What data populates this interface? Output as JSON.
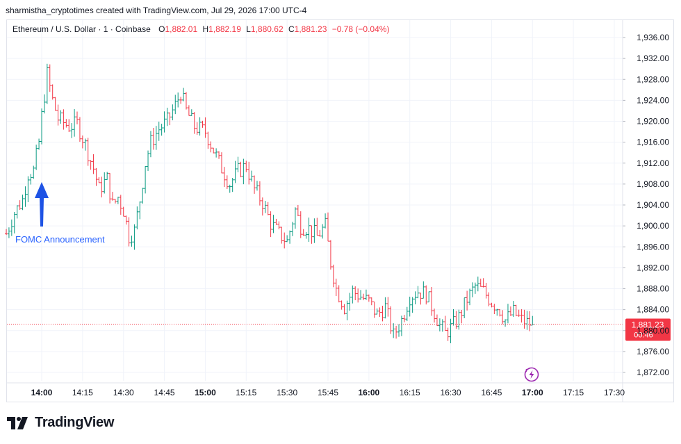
{
  "header": {
    "attribution": "sharmistha_cryptotimes created with TradingView.com, Jul 29, 2026 17:00 UTC-4"
  },
  "legend": {
    "symbol": "Ethereum / U.S. Dollar · 1 · Coinbase",
    "o_label": "O",
    "o_value": "1,882.01",
    "h_label": "H",
    "h_value": "1,882.19",
    "l_label": "L",
    "l_value": "1,880.62",
    "c_label": "C",
    "c_value": "1,881.23",
    "change": "−0.78 (−0.04%)"
  },
  "price_tag": {
    "price": "1,881.23",
    "countdown": "00:46"
  },
  "annotation": {
    "text": "FOMC Announcement"
  },
  "footer": {
    "brand": "TradingView"
  },
  "colors": {
    "up": "#089981",
    "down": "#f23645",
    "annotation": "#2962ff",
    "arrow": "#1e53e5",
    "grid": "#f0f3fa",
    "text": "#131722",
    "muted": "#787b86",
    "bolt": "#9c27b0"
  },
  "chart_data": {
    "type": "ohlc",
    "title": "Ethereum / U.S. Dollar · 1 · Coinbase",
    "xlabel": "",
    "ylabel": "",
    "ylim": [
      1870,
      1938
    ],
    "y_ticks": [
      1872,
      1876,
      1880,
      1884,
      1888,
      1892,
      1896,
      1900,
      1904,
      1908,
      1912,
      1916,
      1920,
      1924,
      1928,
      1932,
      1936
    ],
    "y_tick_labels": [
      "1,872.00",
      "1,876.00",
      "1,880.00",
      "1,884.00",
      "1,888.00",
      "1,892.00",
      "1,896.00",
      "1,900.00",
      "1,904.00",
      "1,908.00",
      "1,912.00",
      "1,916.00",
      "1,920.00",
      "1,924.00",
      "1,928.00",
      "1,932.00",
      "1,936.00"
    ],
    "x_tick_labels": [
      "14:00",
      "14:15",
      "14:30",
      "14:45",
      "15:00",
      "15:15",
      "15:30",
      "15:45",
      "16:00",
      "16:15",
      "16:30",
      "16:45",
      "17:00",
      "17:15",
      "17:30"
    ],
    "x_tick_bold": [
      true,
      false,
      false,
      false,
      true,
      false,
      false,
      false,
      true,
      false,
      false,
      false,
      true,
      false,
      false
    ],
    "last_price": 1881.23,
    "annotation_time": "14:00",
    "close_path": [
      [
        "13:47",
        1898.5
      ],
      [
        "13:50",
        1902.5
      ],
      [
        "13:53",
        1905.0
      ],
      [
        "13:55",
        1910.0
      ],
      [
        "13:57",
        1910.5
      ],
      [
        "13:59",
        1916.0
      ],
      [
        "14:00",
        1921.0
      ],
      [
        "14:02",
        1929.0
      ],
      [
        "14:04",
        1924.0
      ],
      [
        "14:06",
        1920.5
      ],
      [
        "14:10",
        1919.0
      ],
      [
        "14:13",
        1919.5
      ],
      [
        "14:16",
        1915.5
      ],
      [
        "14:19",
        1911.0
      ],
      [
        "14:21",
        1907.0
      ],
      [
        "14:24",
        1909.0
      ],
      [
        "14:26",
        1904.0
      ],
      [
        "14:28",
        1905.5
      ],
      [
        "14:30",
        1903.0
      ],
      [
        "14:32",
        1898.0
      ],
      [
        "14:34",
        1899.0
      ],
      [
        "14:36",
        1905.0
      ],
      [
        "14:38",
        1912.0
      ],
      [
        "14:40",
        1916.0
      ],
      [
        "14:43",
        1918.5
      ],
      [
        "14:46",
        1920.0
      ],
      [
        "14:49",
        1923.0
      ],
      [
        "14:51",
        1925.5
      ],
      [
        "14:53",
        1922.0
      ],
      [
        "14:56",
        1919.0
      ],
      [
        "15:00",
        1918.0
      ],
      [
        "15:03",
        1914.5
      ],
      [
        "15:06",
        1911.0
      ],
      [
        "15:09",
        1908.0
      ],
      [
        "15:12",
        1910.5
      ],
      [
        "15:15",
        1911.5
      ],
      [
        "15:18",
        1907.0
      ],
      [
        "15:21",
        1904.5
      ],
      [
        "15:24",
        1900.5
      ],
      [
        "15:27",
        1898.5
      ],
      [
        "15:30",
        1897.0
      ],
      [
        "15:33",
        1903.0
      ],
      [
        "15:35",
        1900.0
      ],
      [
        "15:38",
        1899.5
      ],
      [
        "15:41",
        1898.0
      ],
      [
        "15:44",
        1900.0
      ],
      [
        "15:46",
        1893.0
      ],
      [
        "15:48",
        1888.0
      ],
      [
        "15:51",
        1884.5
      ],
      [
        "15:54",
        1887.5
      ],
      [
        "15:57",
        1886.5
      ],
      [
        "16:00",
        1885.5
      ],
      [
        "16:03",
        1883.0
      ],
      [
        "16:06",
        1884.5
      ],
      [
        "16:09",
        1879.0
      ],
      [
        "16:12",
        1882.0
      ],
      [
        "16:15",
        1886.5
      ],
      [
        "16:18",
        1887.5
      ],
      [
        "16:21",
        1887.0
      ],
      [
        "16:24",
        1883.5
      ],
      [
        "16:26",
        1881.0
      ],
      [
        "16:28",
        1879.5
      ],
      [
        "16:30",
        1880.5
      ],
      [
        "16:33",
        1882.5
      ],
      [
        "16:36",
        1886.0
      ],
      [
        "16:39",
        1888.5
      ],
      [
        "16:42",
        1887.5
      ],
      [
        "16:45",
        1885.5
      ],
      [
        "16:48",
        1884.0
      ],
      [
        "16:50",
        1882.0
      ],
      [
        "16:53",
        1883.5
      ],
      [
        "16:56",
        1882.0
      ],
      [
        "16:58",
        1881.5
      ],
      [
        "17:00",
        1881.23
      ]
    ],
    "series": [
      {
        "name": "",
        "ticker": "ETHUSD"
      }
    ]
  }
}
